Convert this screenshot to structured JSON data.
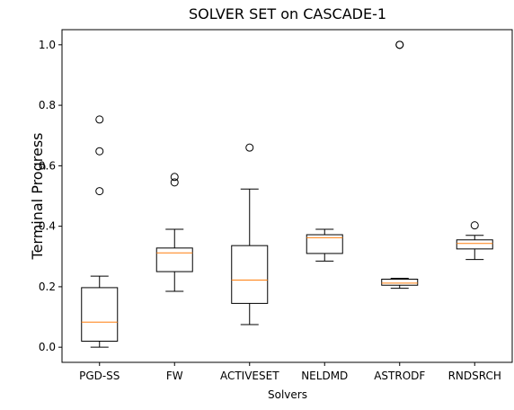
{
  "chart_data": {
    "type": "box",
    "title": "SOLVER SET on CASCADE-1",
    "xlabel": "Solvers",
    "ylabel": "Terminal Progress",
    "ylim": [
      -0.05,
      1.05
    ],
    "yticks": [
      "0.0",
      "0.2",
      "0.4",
      "0.6",
      "0.8",
      "1.0"
    ],
    "grid": false,
    "colors": {
      "box": "#000000",
      "median": "#ff7f0e",
      "outlier": "#000000"
    },
    "categories": [
      "PGD-SS",
      "FW",
      "ACTIVESET",
      "NELDMD",
      "ASTRODF",
      "RNDSRCH"
    ],
    "boxes": [
      {
        "name": "PGD-SS",
        "whislo": 0.0,
        "q1": 0.02,
        "med": 0.083,
        "q3": 0.197,
        "whishi": 0.235,
        "fliers": [
          0.516,
          0.648,
          0.753
        ]
      },
      {
        "name": "FW",
        "whislo": 0.185,
        "q1": 0.25,
        "med": 0.312,
        "q3": 0.328,
        "whishi": 0.39,
        "fliers": [
          0.545,
          0.563
        ]
      },
      {
        "name": "ACTIVESET",
        "whislo": 0.075,
        "q1": 0.145,
        "med": 0.222,
        "q3": 0.336,
        "whishi": 0.523,
        "fliers": [
          0.66
        ]
      },
      {
        "name": "NELDMD",
        "whislo": 0.285,
        "q1": 0.31,
        "med": 0.362,
        "q3": 0.372,
        "whishi": 0.39,
        "fliers": []
      },
      {
        "name": "ASTRODF",
        "whislo": 0.195,
        "q1": 0.205,
        "med": 0.212,
        "q3": 0.225,
        "whishi": 0.228,
        "fliers": [
          1.0,
          1.0
        ]
      },
      {
        "name": "RNDSRCH",
        "whislo": 0.29,
        "q1": 0.325,
        "med": 0.343,
        "q3": 0.355,
        "whishi": 0.37,
        "fliers": [
          0.403
        ]
      }
    ]
  }
}
